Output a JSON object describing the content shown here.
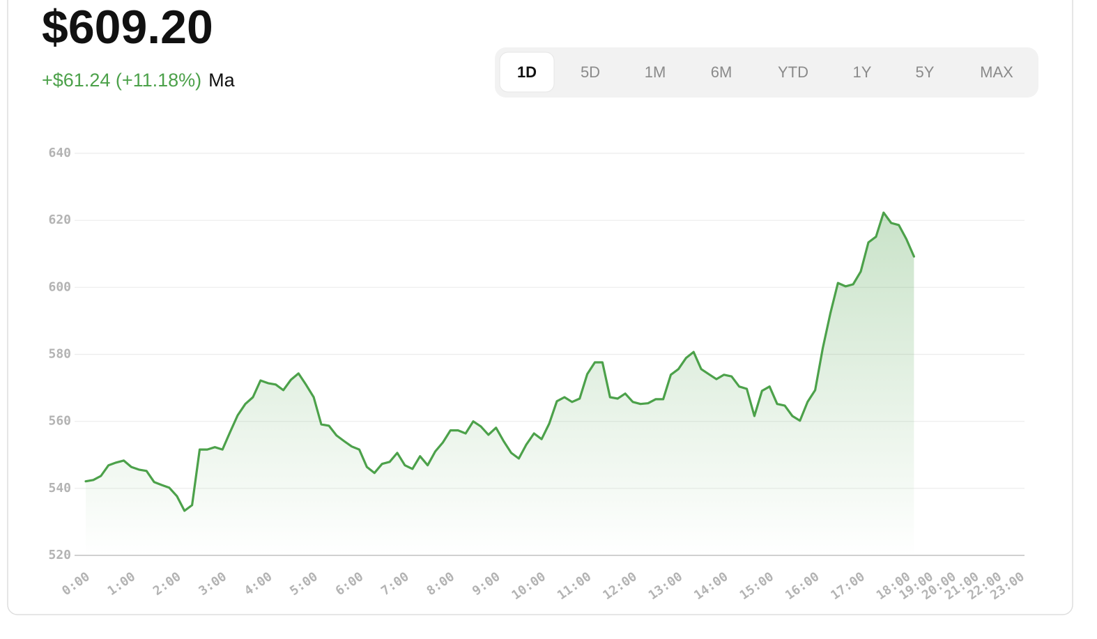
{
  "header": {
    "price": "$609.20",
    "change": "+$61.24 (+11.18%)",
    "label": "Ma"
  },
  "tabs": [
    "1D",
    "5D",
    "1M",
    "6M",
    "YTD",
    "1Y",
    "5Y",
    "MAX"
  ],
  "chart_data": {
    "type": "line",
    "color": "#4ca14a",
    "grid": true,
    "values": [
      542.1,
      542.5,
      543.7,
      546.9,
      547.7,
      548.3,
      546.4,
      545.6,
      545.2,
      541.9,
      541.0,
      540.2,
      537.7,
      533.3,
      535.0,
      551.6,
      551.6,
      552.3,
      551.6,
      556.8,
      561.8,
      565.2,
      567.2,
      572.2,
      571.4,
      571.0,
      569.3,
      572.4,
      574.3,
      570.9,
      567.2,
      559.1,
      558.7,
      555.8,
      554.1,
      552.5,
      551.6,
      546.4,
      544.6,
      547.3,
      547.9,
      550.6,
      546.9,
      545.8,
      549.6,
      546.9,
      551.0,
      553.7,
      557.3,
      557.3,
      556.4,
      560.0,
      558.5,
      556.0,
      558.1,
      554.1,
      550.6,
      548.9,
      553.1,
      556.4,
      554.7,
      559.3,
      566.0,
      567.2,
      565.8,
      566.8,
      574.1,
      577.6,
      577.6,
      567.2,
      566.8,
      568.3,
      565.8,
      565.2,
      565.4,
      566.6,
      566.6,
      573.9,
      575.6,
      578.9,
      580.7,
      575.6,
      574.1,
      572.6,
      573.9,
      573.4,
      570.4,
      569.7,
      561.6,
      569.1,
      570.4,
      565.2,
      564.7,
      561.6,
      560.2,
      565.8,
      569.3,
      581.8,
      592.2,
      601.3,
      600.3,
      600.9,
      604.7,
      613.4,
      615.1,
      622.3,
      619.2,
      618.6,
      614.4,
      609.2
    ],
    "ylim": [
      520,
      640
    ],
    "yticks": [
      520,
      540,
      560,
      580,
      600,
      620,
      640
    ],
    "xlim": [
      0,
      123
    ],
    "xticks": [
      {
        "value": 0,
        "label": "0:00"
      },
      {
        "value": 6,
        "label": "1:00"
      },
      {
        "value": 12,
        "label": "2:00"
      },
      {
        "value": 18,
        "label": "3:00"
      },
      {
        "value": 24,
        "label": "4:00"
      },
      {
        "value": 30,
        "label": "5:00"
      },
      {
        "value": 36,
        "label": "6:00"
      },
      {
        "value": 42,
        "label": "7:00"
      },
      {
        "value": 48,
        "label": "8:00"
      },
      {
        "value": 54,
        "label": "9:00"
      },
      {
        "value": 60,
        "label": "10:00"
      },
      {
        "value": 66,
        "label": "11:00"
      },
      {
        "value": 72,
        "label": "12:00"
      },
      {
        "value": 78,
        "label": "13:00"
      },
      {
        "value": 84,
        "label": "14:00"
      },
      {
        "value": 90,
        "label": "15:00"
      },
      {
        "value": 96,
        "label": "16:00"
      },
      {
        "value": 102,
        "label": "17:00"
      },
      {
        "value": 108,
        "label": "18:00"
      },
      {
        "value": 111,
        "label": "19:00"
      },
      {
        "value": 114,
        "label": "20:00"
      },
      {
        "value": 117,
        "label": "21:00"
      },
      {
        "value": 120,
        "label": "22:00"
      },
      {
        "value": 123,
        "label": "23:00"
      }
    ]
  }
}
